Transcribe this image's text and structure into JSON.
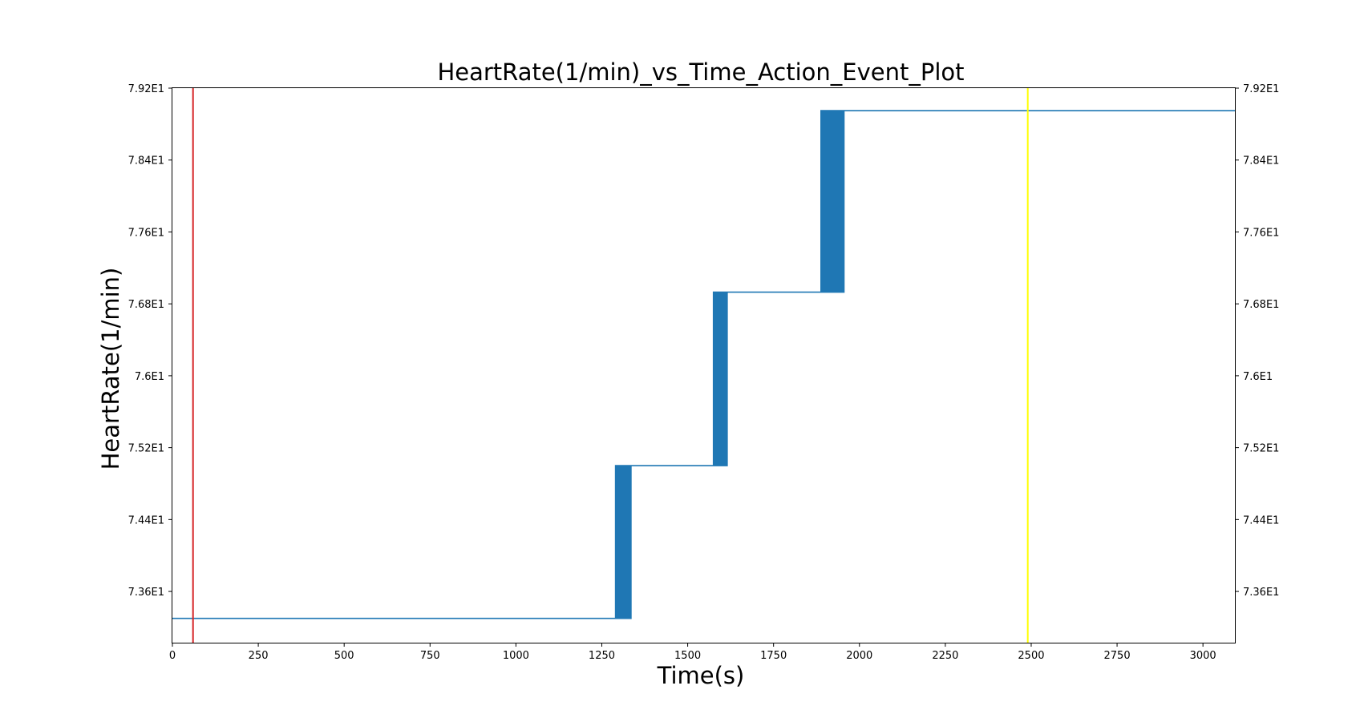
{
  "chart_data": {
    "type": "line",
    "title": "HeartRate(1/min)_vs_Time_Action_Event_Plot",
    "xlabel": "Time(s)",
    "ylabel": "HeartRate(1/min)",
    "xlim": [
      0,
      3093
    ],
    "ylim": [
      73.03,
      79.2
    ],
    "x_ticks": [
      0,
      250,
      500,
      750,
      1000,
      1250,
      1500,
      1750,
      2000,
      2250,
      2500,
      2750,
      3000
    ],
    "x_tick_labels": [
      "0",
      "250",
      "500",
      "750",
      "1000",
      "1250",
      "1500",
      "1750",
      "2000",
      "2250",
      "2500",
      "2750",
      "3000"
    ],
    "y_ticks": [
      79.2,
      78.4,
      77.6,
      76.8,
      76.0,
      75.2,
      74.4,
      73.6
    ],
    "y_tick_labels": [
      "7.92E1",
      "7.84E1",
      "7.76E1",
      "7.68E1",
      "7.6E1",
      "7.52E1",
      "7.44E1",
      "7.36E1"
    ],
    "y_ticks_mirrored_right": true,
    "grid": false,
    "legend": "none",
    "series": [
      {
        "color": "#1f77b4",
        "levels": [
          {
            "x_start": 0,
            "x_end": 1290,
            "y": 73.3
          },
          {
            "x_start": 1290,
            "x_end": 1335,
            "y": 73.3,
            "y_alt": 75.0,
            "oscillating": true
          },
          {
            "x_start": 1335,
            "x_end": 1575,
            "y": 75.0
          },
          {
            "x_start": 1575,
            "x_end": 1615,
            "y": 75.0,
            "y_alt": 76.93,
            "oscillating": true
          },
          {
            "x_start": 1615,
            "x_end": 1888,
            "y": 76.93
          },
          {
            "x_start": 1888,
            "x_end": 1955,
            "y": 76.93,
            "y_alt": 78.95,
            "oscillating": true
          },
          {
            "x_start": 1955,
            "x_end": 3093,
            "y": 78.95
          }
        ]
      }
    ],
    "event_lines": [
      {
        "x": 60,
        "color": "#d62728"
      },
      {
        "x": 2490,
        "color": "#ffff00"
      }
    ]
  }
}
